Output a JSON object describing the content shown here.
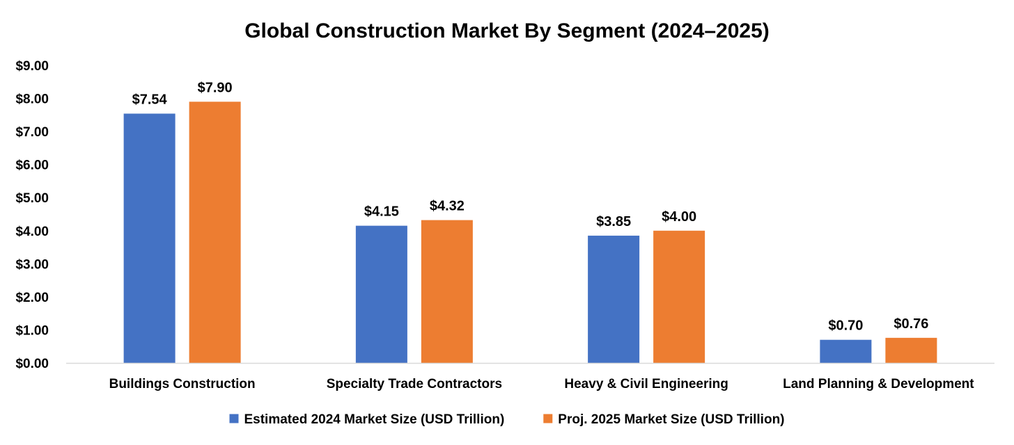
{
  "chart_data": {
    "type": "bar",
    "title": "Global Construction Market By Segment (2024–2025)",
    "categories": [
      "Buildings Construction",
      "Specialty Trade Contractors",
      "Heavy & Civil Engineering",
      "Land Planning & Development"
    ],
    "series": [
      {
        "name": "Estimated 2024 Market Size (USD Trillion)",
        "color": "#4472C4",
        "values": [
          7.54,
          4.15,
          3.85,
          0.7
        ],
        "labels": [
          "$7.54",
          "$4.15",
          "$3.85",
          "$0.70"
        ]
      },
      {
        "name": "Proj. 2025 Market Size (USD Trillion)",
        "color": "#ED7D31",
        "values": [
          7.9,
          4.32,
          4.0,
          0.76
        ],
        "labels": [
          "$7.90",
          "$4.32",
          "$4.00",
          "$0.76"
        ]
      }
    ],
    "y_ticks": [
      "$0.00",
      "$1.00",
      "$2.00",
      "$3.00",
      "$4.00",
      "$5.00",
      "$6.00",
      "$7.00",
      "$8.00",
      "$9.00"
    ],
    "ylim": [
      0,
      9
    ],
    "grid": false,
    "legend_position": "bottom"
  }
}
